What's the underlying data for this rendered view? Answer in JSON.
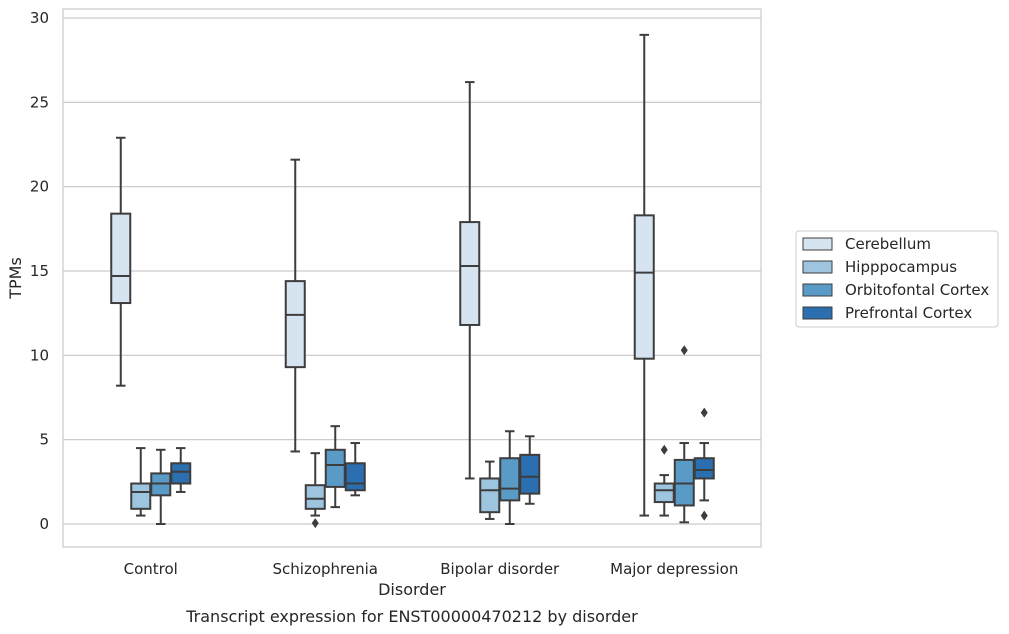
{
  "chart_data": {
    "type": "box",
    "caption": "Transcript expression for ENST00000470212 by disorder",
    "xlabel": "Disorder",
    "ylabel": "TPMs",
    "ylim": [
      -1.4,
      30.5
    ],
    "yticks": [
      0,
      5,
      10,
      15,
      20,
      25,
      30
    ],
    "grid": "horizontal",
    "legend_position": "right",
    "categories": [
      "Control",
      "Schizophrenia",
      "Bipolar disorder",
      "Major depression"
    ],
    "series": [
      {
        "name": "Cerebellum",
        "color": "#d6e4f2",
        "boxes": [
          {
            "whislo": 8.2,
            "q1": 13.1,
            "med": 14.7,
            "q3": 18.4,
            "whishi": 22.9,
            "fliers": []
          },
          {
            "whislo": 4.3,
            "q1": 9.3,
            "med": 12.4,
            "q3": 14.4,
            "whishi": 21.6,
            "fliers": []
          },
          {
            "whislo": 2.7,
            "q1": 11.8,
            "med": 15.3,
            "q3": 17.9,
            "whishi": 26.2,
            "fliers": []
          },
          {
            "whislo": 0.5,
            "q1": 9.8,
            "med": 14.9,
            "q3": 18.3,
            "whishi": 29.0,
            "fliers": []
          }
        ]
      },
      {
        "name": "Hipppocampus",
        "color": "#9ec5e0",
        "boxes": [
          {
            "whislo": 0.5,
            "q1": 0.9,
            "med": 1.9,
            "q3": 2.4,
            "whishi": 4.5,
            "fliers": []
          },
          {
            "whislo": 0.5,
            "q1": 0.9,
            "med": 1.5,
            "q3": 2.3,
            "whishi": 4.2,
            "fliers": [
              0.05
            ]
          },
          {
            "whislo": 0.3,
            "q1": 0.7,
            "med": 2.0,
            "q3": 2.7,
            "whishi": 3.7,
            "fliers": []
          },
          {
            "whislo": 0.5,
            "q1": 1.3,
            "med": 2.0,
            "q3": 2.4,
            "whishi": 2.9,
            "fliers": [
              4.4
            ]
          }
        ]
      },
      {
        "name": "Orbitofontal Cortex",
        "color": "#5a9ac7",
        "boxes": [
          {
            "whislo": 0.0,
            "q1": 1.7,
            "med": 2.4,
            "q3": 3.0,
            "whishi": 4.4,
            "fliers": []
          },
          {
            "whislo": 1.0,
            "q1": 2.2,
            "med": 3.5,
            "q3": 4.4,
            "whishi": 5.8,
            "fliers": []
          },
          {
            "whislo": 0.0,
            "q1": 1.4,
            "med": 2.1,
            "q3": 3.9,
            "whishi": 5.5,
            "fliers": []
          },
          {
            "whislo": 0.1,
            "q1": 1.1,
            "med": 2.4,
            "q3": 3.8,
            "whishi": 4.8,
            "fliers": [
              10.3
            ]
          }
        ]
      },
      {
        "name": "Prefrontal Cortex",
        "color": "#2b6fb0",
        "boxes": [
          {
            "whislo": 1.9,
            "q1": 2.4,
            "med": 3.1,
            "q3": 3.6,
            "whishi": 4.5,
            "fliers": []
          },
          {
            "whislo": 1.7,
            "q1": 2.0,
            "med": 2.4,
            "q3": 3.6,
            "whishi": 4.8,
            "fliers": []
          },
          {
            "whislo": 1.2,
            "q1": 1.8,
            "med": 2.8,
            "q3": 4.1,
            "whishi": 5.2,
            "fliers": []
          },
          {
            "whislo": 1.4,
            "q1": 2.7,
            "med": 3.2,
            "q3": 3.9,
            "whishi": 4.8,
            "fliers": [
              6.6,
              0.5
            ]
          }
        ]
      }
    ]
  }
}
